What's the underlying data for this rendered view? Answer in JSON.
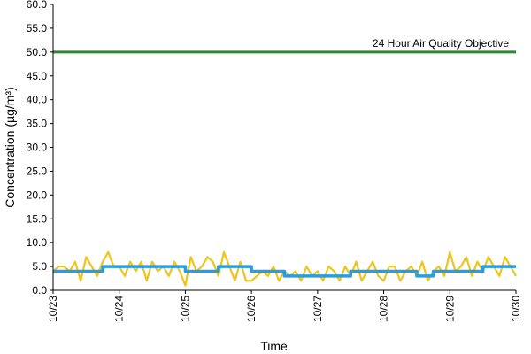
{
  "chart_data": {
    "type": "line",
    "xlabel": "Time",
    "ylabel": "Concentration (µg/m³)",
    "ylim": [
      0,
      60
    ],
    "yticks": [
      "0.0",
      "5.0",
      "10.0",
      "15.0",
      "20.0",
      "25.0",
      "30.0",
      "35.0",
      "40.0",
      "45.0",
      "50.0",
      "55.0",
      "60.0"
    ],
    "xlim": [
      "10/23",
      "10/30"
    ],
    "xticks": [
      "10/23",
      "10/24",
      "10/25",
      "10/26",
      "10/27",
      "10/28",
      "10/29",
      "10/30"
    ],
    "grid": false,
    "annotation": {
      "text": "24 Hour Air Quality Objective",
      "value": 50
    },
    "series": [
      {
        "color": "#2c8c2c",
        "kind": "objective",
        "x": [
          "10/23",
          "10/30"
        ],
        "y": [
          50,
          50
        ]
      },
      {
        "color": "#f0c419",
        "kind": "hourly",
        "x": [
          "10/23 00:00",
          "10/23 02:00",
          "10/23 04:00",
          "10/23 06:00",
          "10/23 08:00",
          "10/23 10:00",
          "10/23 12:00",
          "10/23 14:00",
          "10/23 16:00",
          "10/23 18:00",
          "10/23 20:00",
          "10/23 22:00",
          "10/24 00:00",
          "10/24 02:00",
          "10/24 04:00",
          "10/24 06:00",
          "10/24 08:00",
          "10/24 10:00",
          "10/24 12:00",
          "10/24 14:00",
          "10/24 16:00",
          "10/24 18:00",
          "10/24 20:00",
          "10/24 22:00",
          "10/25 00:00",
          "10/25 02:00",
          "10/25 04:00",
          "10/25 06:00",
          "10/25 08:00",
          "10/25 10:00",
          "10/25 12:00",
          "10/25 14:00",
          "10/25 16:00",
          "10/25 18:00",
          "10/25 20:00",
          "10/25 22:00",
          "10/26 00:00",
          "10/26 02:00",
          "10/26 04:00",
          "10/26 06:00",
          "10/26 08:00",
          "10/26 10:00",
          "10/26 12:00",
          "10/26 14:00",
          "10/26 16:00",
          "10/26 18:00",
          "10/26 20:00",
          "10/26 22:00",
          "10/27 00:00",
          "10/27 02:00",
          "10/27 04:00",
          "10/27 06:00",
          "10/27 08:00",
          "10/27 10:00",
          "10/27 12:00",
          "10/27 14:00",
          "10/27 16:00",
          "10/27 18:00",
          "10/27 20:00",
          "10/27 22:00",
          "10/28 00:00",
          "10/28 02:00",
          "10/28 04:00",
          "10/28 06:00",
          "10/28 08:00",
          "10/28 10:00",
          "10/28 12:00",
          "10/28 14:00",
          "10/28 16:00",
          "10/28 18:00",
          "10/28 20:00",
          "10/28 22:00",
          "10/29 00:00",
          "10/29 02:00",
          "10/29 04:00",
          "10/29 06:00",
          "10/29 08:00",
          "10/29 10:00",
          "10/29 12:00",
          "10/29 14:00",
          "10/29 16:00",
          "10/29 18:00",
          "10/29 20:00",
          "10/29 22:00",
          "10/30 00:00"
        ],
        "y": [
          4,
          5,
          5,
          4,
          6,
          2,
          7,
          5,
          3,
          6,
          8,
          5,
          5,
          3,
          6,
          4,
          6,
          2,
          6,
          4,
          5,
          3,
          6,
          4,
          1,
          7,
          4,
          5,
          7,
          6,
          3,
          8,
          5,
          2,
          6,
          2,
          2,
          3,
          4,
          3,
          5,
          2,
          4,
          3,
          4,
          2,
          5,
          3,
          4,
          2,
          5,
          4,
          2,
          5,
          3,
          6,
          2,
          4,
          6,
          3,
          2,
          5,
          5,
          2,
          4,
          5,
          3,
          6,
          2,
          4,
          5,
          3,
          8,
          4,
          5,
          7,
          3,
          6,
          4,
          7,
          5,
          3,
          7,
          5,
          3
        ]
      },
      {
        "color": "#2a9de0",
        "kind": "24-hour average",
        "x": [
          "10/23",
          "10/23 06:00",
          "10/23 12:00",
          "10/23 18:00",
          "10/24",
          "10/24 06:00",
          "10/24 12:00",
          "10/24 18:00",
          "10/25",
          "10/25 06:00",
          "10/25 12:00",
          "10/25 18:00",
          "10/26",
          "10/26 06:00",
          "10/26 12:00",
          "10/26 18:00",
          "10/27",
          "10/27 06:00",
          "10/27 12:00",
          "10/27 18:00",
          "10/28",
          "10/28 06:00",
          "10/28 12:00",
          "10/28 18:00",
          "10/29",
          "10/29 06:00",
          "10/29 12:00",
          "10/29 18:00",
          "10/30"
        ],
        "y": [
          4,
          4,
          4,
          5,
          5,
          5,
          5,
          5,
          4,
          4,
          5,
          5,
          4,
          4,
          3,
          3,
          3,
          3,
          4,
          4,
          4,
          4,
          3,
          4,
          4,
          4,
          5,
          5,
          5
        ]
      }
    ]
  }
}
